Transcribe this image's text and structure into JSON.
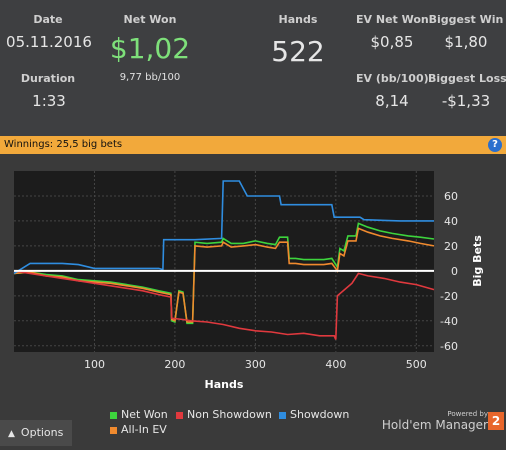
{
  "stats": {
    "date": {
      "label": "Date",
      "value": "05.11.2016"
    },
    "duration": {
      "label": "Duration",
      "value": "1:33"
    },
    "net_won": {
      "label": "Net Won",
      "value": "$1,02",
      "sub": "9,77 bb/100"
    },
    "hands": {
      "label": "Hands",
      "value": "522"
    },
    "ev_net_won": {
      "label": "EV Net Won",
      "value": "$0,85"
    },
    "ev_bb100": {
      "label": "EV (bb/100)",
      "value": "8,14"
    },
    "biggest_win": {
      "label": "Biggest Win",
      "value": "$1,80"
    },
    "biggest_loss": {
      "label": "Biggest Loss",
      "value": "-$1,33"
    }
  },
  "winnings_bar": {
    "text": "Winnings: 25,5 big bets",
    "help_icon": "?"
  },
  "colors": {
    "net_won": "#3dd43d",
    "non_showdown": "#e0393e",
    "showdown": "#2f8de0",
    "allin_ev": "#f08a2e",
    "accent_bar": "#f2a93b"
  },
  "chart_data": {
    "type": "line",
    "xlabel": "Hands",
    "ylabel": "Big Bets",
    "xlim": [
      0,
      522
    ],
    "ylim": [
      -65,
      80
    ],
    "xticks": [
      100,
      200,
      300,
      400,
      500
    ],
    "yticks": [
      60,
      40,
      20,
      0,
      -20,
      -40,
      -60
    ],
    "grid": true,
    "legend_placement": "bottom",
    "series": [
      {
        "name": "Net Won",
        "key": "net_won",
        "points": [
          [
            0,
            -2
          ],
          [
            20,
            -1
          ],
          [
            40,
            -3
          ],
          [
            60,
            -4
          ],
          [
            80,
            -7
          ],
          [
            100,
            -8
          ],
          [
            120,
            -9
          ],
          [
            140,
            -11
          ],
          [
            160,
            -13
          ],
          [
            180,
            -16
          ],
          [
            195,
            -18
          ],
          [
            196,
            -40
          ],
          [
            200,
            -41
          ],
          [
            205,
            -16
          ],
          [
            210,
            -17
          ],
          [
            215,
            -42
          ],
          [
            222,
            -42
          ],
          [
            225,
            23
          ],
          [
            240,
            22
          ],
          [
            258,
            23
          ],
          [
            260,
            26
          ],
          [
            270,
            22
          ],
          [
            285,
            22
          ],
          [
            300,
            24
          ],
          [
            315,
            22
          ],
          [
            325,
            21
          ],
          [
            330,
            27
          ],
          [
            340,
            27
          ],
          [
            342,
            10
          ],
          [
            350,
            10
          ],
          [
            360,
            9
          ],
          [
            385,
            9
          ],
          [
            395,
            10
          ],
          [
            402,
            3
          ],
          [
            405,
            18
          ],
          [
            410,
            16
          ],
          [
            415,
            28
          ],
          [
            425,
            28
          ],
          [
            428,
            38
          ],
          [
            440,
            35
          ],
          [
            455,
            32
          ],
          [
            470,
            30
          ],
          [
            490,
            28
          ],
          [
            505,
            27
          ],
          [
            522,
            25.5
          ]
        ]
      },
      {
        "name": "All-In EV",
        "key": "allin_ev",
        "points": [
          [
            0,
            -2
          ],
          [
            20,
            -1
          ],
          [
            40,
            -4
          ],
          [
            60,
            -5
          ],
          [
            80,
            -8
          ],
          [
            100,
            -9
          ],
          [
            120,
            -10
          ],
          [
            140,
            -12
          ],
          [
            160,
            -14
          ],
          [
            180,
            -17
          ],
          [
            195,
            -19
          ],
          [
            196,
            -39
          ],
          [
            200,
            -40
          ],
          [
            205,
            -17
          ],
          [
            210,
            -18
          ],
          [
            215,
            -41
          ],
          [
            222,
            -41
          ],
          [
            225,
            20
          ],
          [
            240,
            19
          ],
          [
            258,
            20
          ],
          [
            260,
            23
          ],
          [
            270,
            19
          ],
          [
            285,
            20
          ],
          [
            300,
            21
          ],
          [
            315,
            19
          ],
          [
            325,
            18
          ],
          [
            330,
            23
          ],
          [
            340,
            23
          ],
          [
            342,
            6
          ],
          [
            350,
            6
          ],
          [
            360,
            5
          ],
          [
            385,
            5
          ],
          [
            395,
            6
          ],
          [
            402,
            0
          ],
          [
            405,
            14
          ],
          [
            410,
            12
          ],
          [
            415,
            24
          ],
          [
            425,
            24
          ],
          [
            428,
            34
          ],
          [
            440,
            31
          ],
          [
            455,
            28
          ],
          [
            470,
            26
          ],
          [
            490,
            24
          ],
          [
            505,
            22
          ],
          [
            522,
            20
          ]
        ]
      },
      {
        "name": "Non Showdown",
        "key": "non_showdown",
        "points": [
          [
            0,
            0
          ],
          [
            20,
            -2
          ],
          [
            40,
            -4
          ],
          [
            60,
            -6
          ],
          [
            80,
            -8
          ],
          [
            100,
            -10
          ],
          [
            120,
            -12
          ],
          [
            140,
            -14
          ],
          [
            160,
            -16
          ],
          [
            180,
            -19
          ],
          [
            195,
            -21
          ],
          [
            196,
            -38
          ],
          [
            210,
            -39
          ],
          [
            220,
            -40
          ],
          [
            240,
            -41
          ],
          [
            260,
            -43
          ],
          [
            280,
            -46
          ],
          [
            300,
            -48
          ],
          [
            320,
            -49
          ],
          [
            340,
            -51
          ],
          [
            360,
            -50
          ],
          [
            380,
            -52
          ],
          [
            398,
            -52
          ],
          [
            400,
            -55
          ],
          [
            402,
            -20
          ],
          [
            420,
            -10
          ],
          [
            428,
            -2
          ],
          [
            440,
            -4
          ],
          [
            460,
            -6
          ],
          [
            480,
            -9
          ],
          [
            500,
            -11
          ],
          [
            522,
            -15
          ]
        ]
      },
      {
        "name": "Showdown",
        "key": "showdown",
        "points": [
          [
            0,
            -2
          ],
          [
            20,
            6
          ],
          [
            60,
            6
          ],
          [
            80,
            5
          ],
          [
            100,
            2
          ],
          [
            140,
            2
          ],
          [
            180,
            2
          ],
          [
            185,
            1
          ],
          [
            186,
            25
          ],
          [
            210,
            25
          ],
          [
            225,
            25
          ],
          [
            258,
            26
          ],
          [
            260,
            72
          ],
          [
            280,
            72
          ],
          [
            290,
            60
          ],
          [
            330,
            60
          ],
          [
            332,
            53
          ],
          [
            395,
            53
          ],
          [
            398,
            43
          ],
          [
            430,
            43
          ],
          [
            435,
            41
          ],
          [
            480,
            40
          ],
          [
            522,
            40
          ]
        ]
      }
    ]
  },
  "legend": [
    {
      "label": "Net Won",
      "key": "net_won"
    },
    {
      "label": "Non Showdown",
      "key": "non_showdown"
    },
    {
      "label": "Showdown",
      "key": "showdown"
    },
    {
      "label": "All-In EV",
      "key": "allin_ev"
    }
  ],
  "footer": {
    "options_label": "Options",
    "options_icon": "caret-up-icon",
    "powered_by": "Powered by",
    "brand": "Hold'em Manager",
    "brand_badge": "2"
  }
}
